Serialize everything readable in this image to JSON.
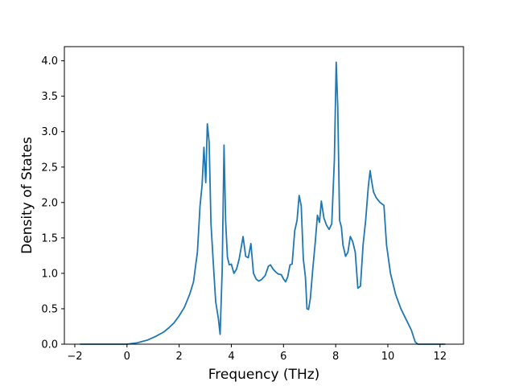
{
  "chart_data": {
    "type": "line",
    "title": "",
    "xlabel": "Frequency (THz)",
    "ylabel": "Density of States",
    "xlim": [
      -2.4,
      12.9
    ],
    "ylim": [
      0.0,
      4.2
    ],
    "xticks": [
      -2,
      0,
      2,
      4,
      6,
      8,
      10,
      12
    ],
    "xtick_labels": [
      "−2",
      "0",
      "2",
      "4",
      "6",
      "8",
      "10",
      "12"
    ],
    "yticks": [
      0.0,
      0.5,
      1.0,
      1.5,
      2.0,
      2.5,
      3.0,
      3.5,
      4.0
    ],
    "ytick_labels": [
      "0.0",
      "0.5",
      "1.0",
      "1.5",
      "2.0",
      "2.5",
      "3.0",
      "3.5",
      "4.0"
    ],
    "grid": false,
    "series": [
      {
        "color": "#1f77b4",
        "x": [
          -1.8,
          -1.0,
          0.0,
          0.4,
          0.8,
          1.1,
          1.4,
          1.6,
          1.8,
          2.0,
          2.2,
          2.4,
          2.55,
          2.7,
          2.8,
          2.88,
          2.95,
          3.02,
          3.08,
          3.15,
          3.22,
          3.3,
          3.4,
          3.5,
          3.57,
          3.65,
          3.72,
          3.78,
          3.85,
          3.92,
          4.0,
          4.1,
          4.2,
          4.3,
          4.45,
          4.55,
          4.65,
          4.75,
          4.85,
          4.95,
          5.05,
          5.15,
          5.3,
          5.42,
          5.5,
          5.6,
          5.7,
          5.8,
          5.92,
          6.0,
          6.08,
          6.16,
          6.25,
          6.33,
          6.43,
          6.52,
          6.6,
          6.68,
          6.76,
          6.84,
          6.9,
          6.96,
          7.03,
          7.12,
          7.22,
          7.3,
          7.38,
          7.45,
          7.55,
          7.65,
          7.75,
          7.85,
          7.95,
          8.02,
          8.08,
          8.15,
          8.22,
          8.28,
          8.38,
          8.47,
          8.56,
          8.65,
          8.75,
          8.85,
          8.95,
          9.05,
          9.15,
          9.25,
          9.32,
          9.38,
          9.45,
          9.55,
          9.7,
          9.85,
          9.95,
          10.1,
          10.3,
          10.5,
          10.7,
          10.9,
          11.05,
          11.15,
          11.6,
          12.2
        ],
        "y": [
          0.0,
          0.0,
          0.0,
          0.02,
          0.06,
          0.11,
          0.17,
          0.23,
          0.3,
          0.4,
          0.52,
          0.7,
          0.88,
          1.3,
          1.95,
          2.25,
          2.78,
          2.28,
          3.11,
          2.85,
          1.7,
          1.2,
          0.6,
          0.37,
          0.14,
          1.05,
          2.81,
          1.75,
          1.23,
          1.12,
          1.13,
          1.0,
          1.06,
          1.2,
          1.52,
          1.24,
          1.22,
          1.42,
          1.0,
          0.92,
          0.89,
          0.91,
          0.97,
          1.1,
          1.12,
          1.06,
          1.02,
          0.99,
          0.98,
          0.92,
          0.88,
          0.95,
          1.12,
          1.13,
          1.6,
          1.75,
          2.1,
          1.95,
          1.2,
          0.95,
          0.5,
          0.49,
          0.65,
          1.05,
          1.45,
          1.82,
          1.72,
          2.02,
          1.78,
          1.68,
          1.62,
          1.7,
          2.6,
          3.98,
          3.35,
          1.75,
          1.65,
          1.4,
          1.24,
          1.3,
          1.52,
          1.45,
          1.3,
          0.79,
          0.82,
          1.4,
          1.75,
          2.22,
          2.45,
          2.3,
          2.15,
          2.07,
          2.0,
          1.96,
          1.4,
          1.0,
          0.7,
          0.5,
          0.35,
          0.2,
          0.03,
          0.0,
          0.0,
          0.0
        ]
      }
    ]
  }
}
